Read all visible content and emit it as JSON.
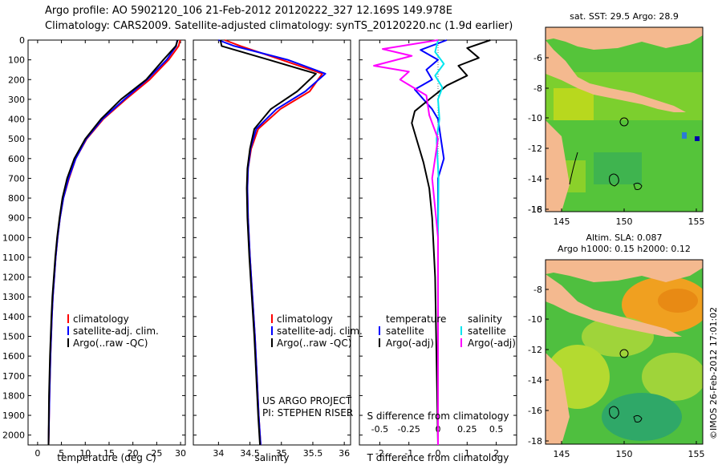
{
  "header": {
    "line1": "Argo profile: AO 5902120_106 21-Feb-2012 20120222_327 12.169S 149.978E",
    "line2": "Climatology: CARS2009. Satellite-adjusted climatology: synTS_20120220.nc (1.9d earlier)"
  },
  "depth_axis": {
    "ticks": [
      0,
      100,
      200,
      300,
      400,
      500,
      600,
      700,
      800,
      900,
      1000,
      1100,
      1200,
      1300,
      1400,
      1500,
      1600,
      1700,
      1800,
      1900,
      2000
    ],
    "range": [
      0,
      2050
    ]
  },
  "colors": {
    "climatology": "#ff0000",
    "satellite": "#0000ff",
    "argo": "#000000",
    "satellite_s": "#00e5ee",
    "argo_s": "#ff00ff"
  },
  "chart_data": [
    {
      "type": "line",
      "title": "",
      "xlabel": "temperature (deg C)",
      "ylabel": "",
      "xlim": [
        -2,
        31
      ],
      "ylim": [
        2050,
        0
      ],
      "xticks": [
        0,
        5,
        10,
        15,
        20,
        25,
        30
      ],
      "legend": {
        "position": "lower-center",
        "labels": [
          "climatology",
          "satellite-adj. clim.",
          "Argo(..raw -QC)"
        ]
      },
      "series": [
        {
          "name": "climatology",
          "color": "#ff0000",
          "x": [
            29.9,
            29.6,
            27.5,
            23.5,
            18.5,
            13.8,
            10.3,
            8.0,
            6.6,
            5.4,
            4.7,
            4.2,
            3.8,
            3.5,
            3.2,
            3.0,
            2.7,
            2.5,
            2.3
          ],
          "y": [
            0,
            30,
            100,
            200,
            300,
            400,
            500,
            600,
            700,
            800,
            900,
            1000,
            1100,
            1200,
            1300,
            1400,
            1600,
            1800,
            2050
          ]
        },
        {
          "name": "satellite-adj. clim.",
          "color": "#0000ff",
          "x": [
            29.3,
            29.1,
            27.1,
            23.0,
            18.2,
            13.6,
            10.2,
            8.0,
            6.5,
            5.4,
            4.7,
            4.2,
            3.8,
            3.5,
            3.2,
            3.0,
            2.7,
            2.5,
            2.3
          ],
          "y": [
            0,
            30,
            100,
            200,
            300,
            400,
            500,
            600,
            700,
            800,
            900,
            1000,
            1100,
            1200,
            1300,
            1400,
            1600,
            1800,
            2050
          ]
        },
        {
          "name": "Argo(..raw -QC)",
          "color": "#000000",
          "x": [
            29.4,
            29.0,
            26.4,
            22.8,
            17.5,
            13.3,
            10.0,
            7.7,
            6.2,
            5.2,
            4.6,
            4.1,
            3.7,
            3.4,
            3.1,
            2.9,
            2.6,
            2.4,
            2.3
          ],
          "y": [
            0,
            30,
            100,
            200,
            300,
            400,
            500,
            600,
            700,
            800,
            900,
            1000,
            1100,
            1200,
            1300,
            1400,
            1600,
            1800,
            2050
          ]
        }
      ]
    },
    {
      "type": "line",
      "title": "",
      "xlabel": "salinity",
      "ylabel": "",
      "xlim": [
        33.6,
        36.1
      ],
      "ylim": [
        2050,
        0
      ],
      "xticks": [
        34,
        34.5,
        35,
        35.5,
        36
      ],
      "legend": {
        "position": "lower-center",
        "labels": [
          "climatology",
          "satellite-adj. clim.",
          "Argo(..raw -QC)"
        ]
      },
      "annotations": [
        "US ARGO PROJECT",
        "PI: STEPHEN RISER"
      ],
      "series": [
        {
          "name": "climatology",
          "color": "#ff0000",
          "x": [
            34.1,
            34.35,
            35.0,
            35.65,
            35.45,
            34.98,
            34.63,
            34.52,
            34.47,
            34.46,
            34.47,
            34.5,
            34.54,
            34.58,
            34.61,
            34.64,
            34.66,
            34.67
          ],
          "y": [
            0,
            30,
            100,
            170,
            260,
            350,
            450,
            550,
            650,
            750,
            900,
            1100,
            1300,
            1500,
            1700,
            1900,
            2000,
            2050
          ]
        },
        {
          "name": "satellite-adj. clim.",
          "color": "#0000ff",
          "x": [
            34.0,
            34.25,
            35.1,
            35.7,
            35.38,
            34.92,
            34.6,
            34.51,
            34.47,
            34.46,
            34.47,
            34.5,
            34.54,
            34.58,
            34.61,
            34.64,
            34.66,
            34.67
          ],
          "y": [
            0,
            30,
            100,
            170,
            260,
            350,
            450,
            550,
            650,
            750,
            900,
            1100,
            1300,
            1500,
            1700,
            1900,
            2000,
            2050
          ]
        },
        {
          "name": "Argo(..raw -QC)",
          "color": "#000000",
          "x": [
            34.03,
            34.05,
            34.8,
            35.55,
            35.25,
            34.83,
            34.57,
            34.5,
            34.46,
            34.45,
            34.46,
            34.49,
            34.53,
            34.57,
            34.6,
            34.63,
            34.65,
            34.66
          ],
          "y": [
            0,
            30,
            100,
            170,
            260,
            350,
            450,
            550,
            650,
            750,
            900,
            1100,
            1300,
            1500,
            1700,
            1900,
            2000,
            2050
          ]
        }
      ]
    },
    {
      "type": "line",
      "title": "",
      "xlabel": "T difference from climatology",
      "xlabel_top": "S difference from climatology",
      "ylabel": "",
      "xlim": [
        -2.7,
        2.7
      ],
      "ylim": [
        2050,
        0
      ],
      "xticks": [
        -2,
        -1,
        0,
        1,
        2
      ],
      "xticks_top": [
        -0.5,
        -0.25,
        0,
        0.25,
        0.5
      ],
      "xticks_top_labels": [
        "-0.5",
        "-0.25",
        "0",
        "0.25",
        "0.5"
      ],
      "legend": {
        "position": "lower-center",
        "groups": [
          "temperature",
          "salinity"
        ],
        "labels": [
          "satellite",
          "Argo(-adj)",
          "satellite",
          "Argo(-adj)"
        ]
      },
      "series": [
        {
          "name": "temperature satellite",
          "color": "#0000ff",
          "x": [
            0.3,
            -0.6,
            0.0,
            -0.4,
            -0.2,
            -0.8,
            -0.5,
            -0.2,
            0.0,
            0.1,
            0.2,
            0.0,
            0.0,
            0.0,
            0.0
          ],
          "y": [
            0,
            50,
            100,
            150,
            200,
            250,
            300,
            350,
            400,
            500,
            600,
            700,
            800,
            1000,
            2050
          ]
        },
        {
          "name": "temperature Argo(-adj)",
          "color": "#000000",
          "x": [
            1.8,
            1.0,
            1.4,
            0.7,
            1.0,
            0.3,
            -0.3,
            -0.8,
            -0.9,
            -0.7,
            -0.5,
            -0.3,
            -0.2,
            -0.1,
            0.0
          ],
          "y": [
            0,
            40,
            90,
            130,
            180,
            230,
            300,
            360,
            420,
            520,
            620,
            750,
            900,
            1200,
            2050
          ]
        },
        {
          "name": "salinity satellite",
          "color": "#00e5ee",
          "x": [
            0.0,
            -0.1,
            0.2,
            -0.1,
            0.15,
            0.0,
            0.05,
            -0.05,
            0.02,
            0.0,
            0.0
          ],
          "y": [
            0,
            60,
            120,
            180,
            240,
            300,
            400,
            500,
            700,
            1000,
            2050
          ]
        },
        {
          "name": "salinity Argo(-adj)",
          "color": "#ff00ff",
          "x": [
            0.0,
            -1.9,
            -0.9,
            -2.2,
            -1.0,
            -1.3,
            -0.4,
            -0.3,
            0.0,
            -0.2,
            0.0,
            0.0
          ],
          "y": [
            0,
            45,
            80,
            130,
            160,
            200,
            280,
            380,
            500,
            700,
            1000,
            2050
          ]
        }
      ]
    }
  ],
  "maps": [
    {
      "title": "sat. SST: 29.5 Argo: 28.9",
      "xticks": [
        "145",
        "150",
        "155"
      ],
      "yticks": [
        "-6",
        "-8",
        "-10",
        "-12",
        "-14",
        "-16",
        "-18"
      ]
    },
    {
      "title": "Altim. SLA: 0.087",
      "subtitle": "Argo h1000: 0.15 h2000: 0.12",
      "xticks": [
        "145",
        "150",
        "155"
      ],
      "yticks": [
        "-8",
        "-10",
        "-12",
        "-14",
        "-16",
        "-18"
      ]
    }
  ],
  "credit": "©IMOS 26-Feb-2012 17:01:02"
}
